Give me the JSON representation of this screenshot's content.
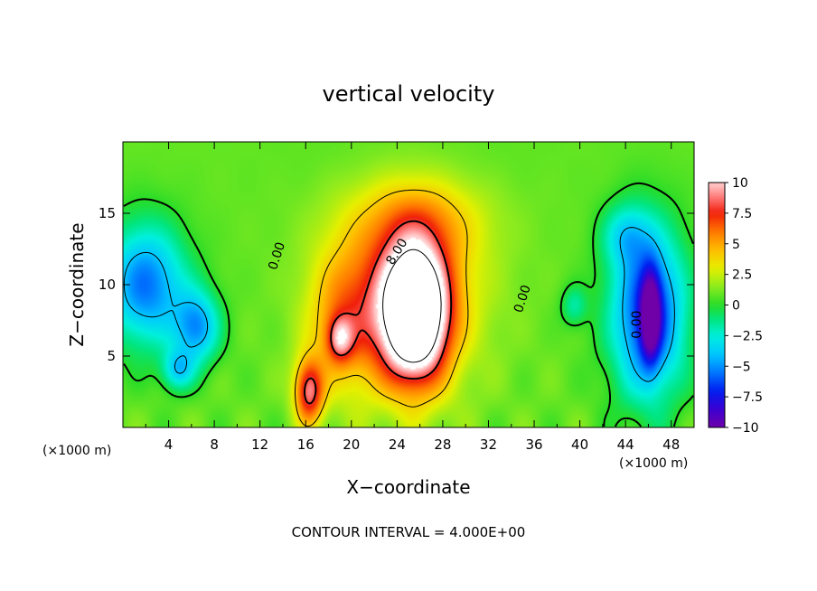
{
  "chart_data": {
    "type": "heatmap",
    "title": "vertical velocity",
    "xlabel": "X−coordinate",
    "ylabel": "Z−coordinate",
    "x_unit_left": "(×1000 m)",
    "x_unit_right": "(×1000 m)",
    "xlim": [
      0,
      50
    ],
    "ylim": [
      0,
      20
    ],
    "x_ticks": [
      4,
      8,
      12,
      16,
      20,
      24,
      28,
      32,
      36,
      40,
      44,
      48
    ],
    "y_ticks": [
      5,
      10,
      15
    ],
    "colorbar": {
      "range": [
        -10,
        10
      ],
      "ticks": [
        "10",
        "7.5",
        "5",
        "2.5",
        "0",
        "−2.5",
        "−5",
        "−7.5",
        "−10"
      ]
    },
    "contour_interval_text": "CONTOUR INTERVAL = 4.000E+00",
    "contour_labels": [
      {
        "text": "0.00",
        "x": 13.5,
        "z": 12.0,
        "rotate": -72
      },
      {
        "text": "8.00",
        "x": 24.0,
        "z": 12.3,
        "rotate": -58
      },
      {
        "text": "0.00",
        "x": 35.0,
        "z": 9.0,
        "rotate": -72
      },
      {
        "text": "0.00",
        "x": 45.0,
        "z": 7.2,
        "rotate": -90
      }
    ],
    "features": [
      {
        "name": "updraft-core",
        "x": 25.5,
        "z": 8.0,
        "sx": 2.0,
        "sz": 3.2,
        "w": 15.5
      },
      {
        "name": "updraft-envelope",
        "x": 25.0,
        "z": 10.0,
        "sx": 4.3,
        "sz": 5.0,
        "w": 4.5
      },
      {
        "name": "updraft-left-lobe",
        "x": 19.5,
        "z": 7.5,
        "sx": 2.3,
        "sz": 3.5,
        "w": 4.0
      },
      {
        "name": "cell-19",
        "x": 19.0,
        "z": 6.2,
        "sx": 0.8,
        "sz": 1.1,
        "w": 5.0
      },
      {
        "name": "cell-16",
        "x": 16.3,
        "z": 2.5,
        "sx": 0.9,
        "sz": 1.6,
        "w": 7.5
      },
      {
        "name": "updraft-upper",
        "x": 26.0,
        "z": 14.5,
        "sx": 4.0,
        "sz": 2.0,
        "w": 2.0
      },
      {
        "name": "downdraft-left",
        "x": 2.0,
        "z": 10.0,
        "sx": 2.5,
        "sz": 3.0,
        "w": -6.5
      },
      {
        "name": "downdraft-left-2",
        "x": 6.5,
        "z": 7.0,
        "sx": 1.4,
        "sz": 1.8,
        "w": -5.5
      },
      {
        "name": "downdraft-left-3",
        "x": 4.8,
        "z": 4.0,
        "sx": 1.0,
        "sz": 1.0,
        "w": -4.0
      },
      {
        "name": "downdraft-right",
        "x": 46.0,
        "z": 8.0,
        "sx": 2.3,
        "sz": 4.2,
        "w": -8.0
      },
      {
        "name": "downdraft-right-core",
        "x": 46.2,
        "z": 7.8,
        "sx": 0.6,
        "sz": 2.2,
        "w": -7.0
      },
      {
        "name": "downdraft-right-upper",
        "x": 44.0,
        "z": 13.5,
        "sx": 1.5,
        "sz": 1.5,
        "w": -3.0
      },
      {
        "name": "downdraft-39",
        "x": 39.5,
        "z": 8.5,
        "sx": 0.8,
        "sz": 1.0,
        "w": -2.5
      },
      {
        "name": "downdraft-upper-band",
        "x": 25.0,
        "z": 19.0,
        "sx": 6.0,
        "sz": 2.0,
        "w": -0.5
      }
    ]
  }
}
